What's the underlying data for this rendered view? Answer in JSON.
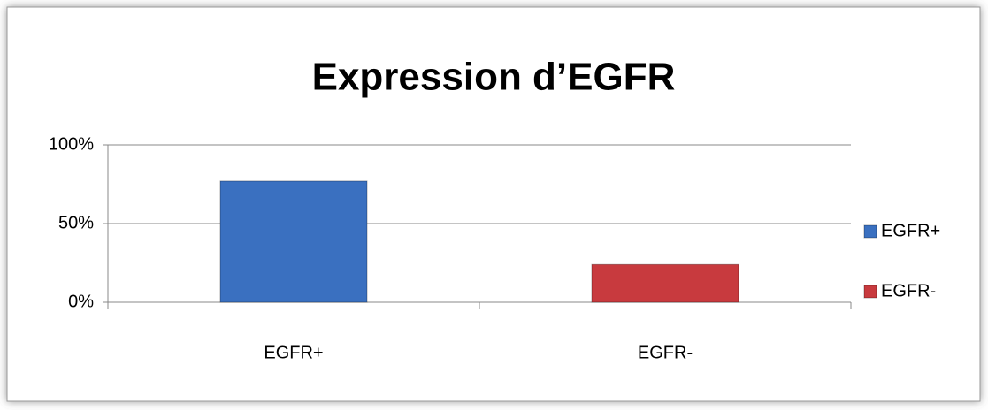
{
  "chart_data": {
    "type": "bar",
    "title": "Expression d’EGFR",
    "categories": [
      "EGFR+",
      "EGFR-"
    ],
    "series": [
      {
        "name": "EGFR+",
        "color": "#3a70c0",
        "values": [
          77,
          null
        ]
      },
      {
        "name": "EGFR-",
        "color": "#c83a3e",
        "values": [
          null,
          24
        ]
      }
    ],
    "ylim": [
      0,
      100
    ],
    "yticks": [
      {
        "value": 0,
        "label": "0%"
      },
      {
        "value": 50,
        "label": "50%"
      },
      {
        "value": 100,
        "label": "100%"
      }
    ],
    "grid": true,
    "legend": "right"
  }
}
